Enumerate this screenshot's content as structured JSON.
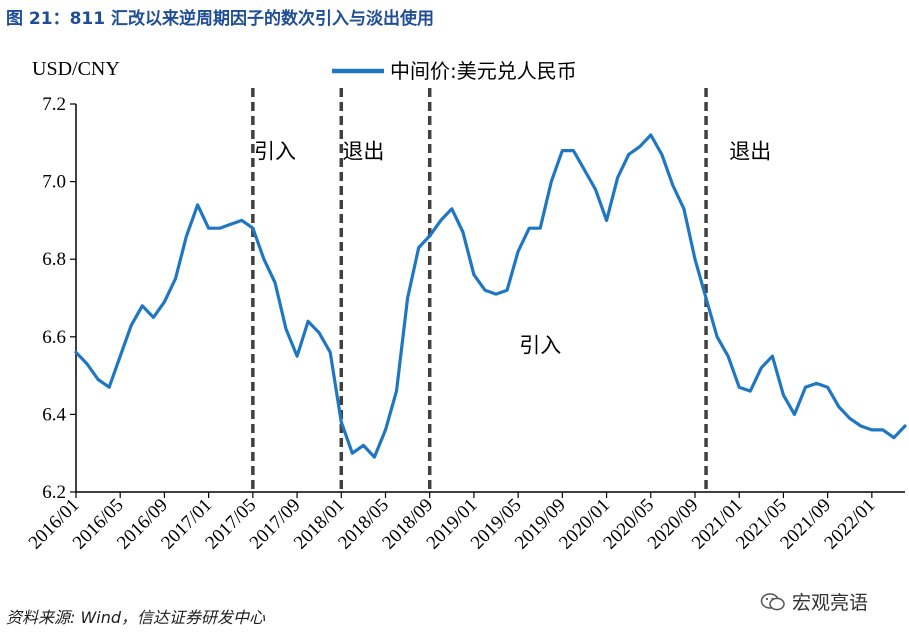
{
  "title": "图 21：811 汇改以来逆周期因子的数次引入与淡出使用",
  "source": "资料来源: Wind，信达证券研发中心",
  "watermark": "宏观亮语",
  "watermark_icon": "wechat-icon",
  "colors": {
    "title": "#1f4e96",
    "series": "#1f77c4",
    "divider": "#404040"
  },
  "chart_data": {
    "type": "line",
    "ylabel": "USD/CNY",
    "ylim": [
      6.2,
      7.2
    ],
    "yticks": [
      "6.2",
      "6.4",
      "6.6",
      "6.8",
      "7.0",
      "7.2"
    ],
    "xticks": [
      "2016/01",
      "2016/05",
      "2016/09",
      "2017/01",
      "2017/05",
      "2017/09",
      "2018/01",
      "2018/05",
      "2018/09",
      "2019/01",
      "2019/05",
      "2019/09",
      "2020/01",
      "2020/05",
      "2020/09",
      "2021/01",
      "2021/05",
      "2021/09",
      "2022/01"
    ],
    "xlim": [
      "2016/01",
      "2022/04"
    ],
    "legend": {
      "position": "top-center",
      "entries": [
        "中间价:美元兑人民币"
      ]
    },
    "grid": false,
    "series": [
      {
        "name": "中间价:美元兑人民币",
        "x": [
          "2016/01",
          "2016/02",
          "2016/03",
          "2016/04",
          "2016/05",
          "2016/06",
          "2016/07",
          "2016/08",
          "2016/09",
          "2016/10",
          "2016/11",
          "2016/12",
          "2017/01",
          "2017/02",
          "2017/03",
          "2017/04",
          "2017/05",
          "2017/06",
          "2017/07",
          "2017/08",
          "2017/09",
          "2017/10",
          "2017/11",
          "2017/12",
          "2018/01",
          "2018/02",
          "2018/03",
          "2018/04",
          "2018/05",
          "2018/06",
          "2018/07",
          "2018/08",
          "2018/09",
          "2018/10",
          "2018/11",
          "2018/12",
          "2019/01",
          "2019/02",
          "2019/03",
          "2019/04",
          "2019/05",
          "2019/06",
          "2019/07",
          "2019/08",
          "2019/09",
          "2019/10",
          "2019/11",
          "2019/12",
          "2020/01",
          "2020/02",
          "2020/03",
          "2020/04",
          "2020/05",
          "2020/06",
          "2020/07",
          "2020/08",
          "2020/09",
          "2020/10",
          "2020/11",
          "2020/12",
          "2021/01",
          "2021/02",
          "2021/03",
          "2021/04",
          "2021/05",
          "2021/06",
          "2021/07",
          "2021/08",
          "2021/09",
          "2021/10",
          "2021/11",
          "2021/12",
          "2022/01",
          "2022/02",
          "2022/03",
          "2022/04"
        ],
        "values": [
          6.56,
          6.53,
          6.49,
          6.47,
          6.55,
          6.63,
          6.68,
          6.65,
          6.69,
          6.75,
          6.86,
          6.94,
          6.88,
          6.88,
          6.89,
          6.9,
          6.88,
          6.8,
          6.74,
          6.62,
          6.55,
          6.64,
          6.61,
          6.56,
          6.38,
          6.3,
          6.32,
          6.29,
          6.36,
          6.46,
          6.7,
          6.83,
          6.86,
          6.9,
          6.93,
          6.87,
          6.76,
          6.72,
          6.71,
          6.72,
          6.82,
          6.88,
          6.88,
          7.0,
          7.08,
          7.08,
          7.03,
          6.98,
          6.9,
          7.01,
          7.07,
          7.09,
          7.12,
          7.07,
          6.99,
          6.93,
          6.8,
          6.7,
          6.6,
          6.55,
          6.47,
          6.46,
          6.52,
          6.55,
          6.45,
          6.4,
          6.47,
          6.48,
          6.47,
          6.42,
          6.39,
          6.37,
          6.36,
          6.36,
          6.34,
          6.37
        ]
      }
    ],
    "dividers": [
      "2017/05",
      "2018/01",
      "2018/09",
      "2020/10"
    ],
    "annotations": [
      {
        "text": "引入",
        "x": "2017/07",
        "y": 7.06
      },
      {
        "text": "退出",
        "x": "2018/03",
        "y": 7.06
      },
      {
        "text": "引入",
        "x": "2019/07",
        "y": 6.56
      },
      {
        "text": "退出",
        "x": "2021/02",
        "y": 7.06
      }
    ]
  }
}
